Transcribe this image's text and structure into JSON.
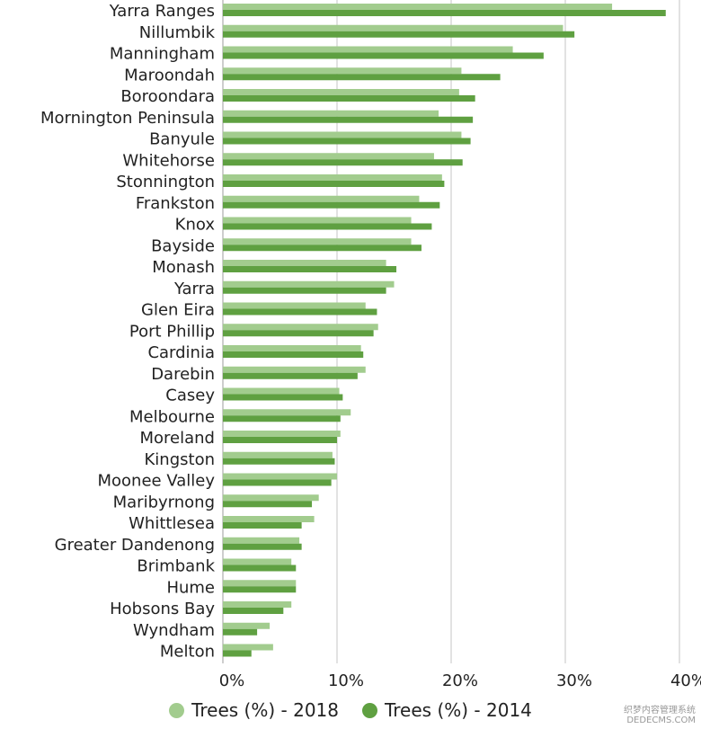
{
  "chart_data": {
    "type": "bar",
    "orientation": "horizontal",
    "categories": [
      "Yarra Ranges",
      "Nillumbik",
      "Manningham",
      "Maroondah",
      "Boroondara",
      "Mornington Peninsula",
      "Banyule",
      "Whitehorse",
      "Stonnington",
      "Frankston",
      "Knox",
      "Bayside",
      "Monash",
      "Yarra",
      "Glen Eira",
      "Port Phillip",
      "Cardinia",
      "Darebin",
      "Casey",
      "Melbourne",
      "Moreland",
      "Kingston",
      "Moonee Valley",
      "Maribyrnong",
      "Whittlesea",
      "Greater Dandenong",
      "Brimbank",
      "Hume",
      "Hobsons Bay",
      "Wyndham",
      "Melton"
    ],
    "series": [
      {
        "name": "Trees (%) - 2018",
        "color": "#a2cc8e",
        "values": [
          34.1,
          29.8,
          25.4,
          20.9,
          20.7,
          18.9,
          20.9,
          18.5,
          19.2,
          17.2,
          16.5,
          16.5,
          14.3,
          15.0,
          12.5,
          13.6,
          12.1,
          12.5,
          10.2,
          11.2,
          10.3,
          9.6,
          10.0,
          8.4,
          8.0,
          6.7,
          6.0,
          6.4,
          6.0,
          4.1,
          4.4
        ]
      },
      {
        "name": "Trees (%) - 2014",
        "color": "#5fa041",
        "values": [
          38.8,
          30.8,
          28.1,
          24.3,
          22.1,
          21.9,
          21.7,
          21.0,
          19.4,
          19.0,
          18.3,
          17.4,
          15.2,
          14.3,
          13.5,
          13.2,
          12.3,
          11.8,
          10.5,
          10.3,
          10.0,
          9.8,
          9.5,
          7.8,
          6.9,
          6.9,
          6.4,
          6.4,
          5.3,
          3.0,
          2.5
        ]
      }
    ],
    "x_ticks": [
      "0%",
      "10%",
      "20%",
      "30%",
      "40%"
    ],
    "xlim": [
      0,
      40
    ],
    "grid": true,
    "legend_position": "bottom"
  },
  "watermark": {
    "line1": "织梦内容管理系统",
    "line2": "DEDECMS.COM"
  }
}
